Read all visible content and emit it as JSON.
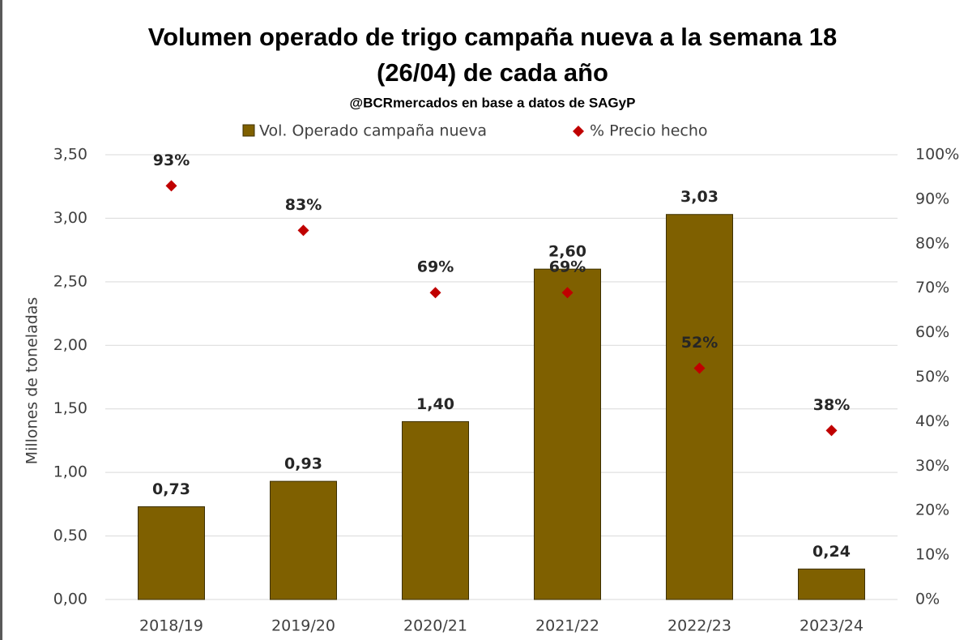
{
  "chart_data": {
    "type": "bar",
    "title": [
      "Volumen operado de trigo campaña nueva a la semana 18",
      "(26/04) de cada año"
    ],
    "subtitle": "@BCRmercados en base a datos de SAGyP",
    "y_label": "Millones de toneladas",
    "categories": [
      "2018/19",
      "2019/20",
      "2020/21",
      "2021/22",
      "2022/23",
      "2023/24"
    ],
    "series": [
      {
        "name": "Vol. Operado campaña nueva",
        "type": "bar",
        "color": "#7f6000",
        "values": [
          0.73,
          0.93,
          1.4,
          2.6,
          3.03,
          0.24
        ],
        "value_labels": [
          "0,73",
          "0,93",
          "1,40",
          "2,60",
          "3,03",
          "0,24"
        ]
      },
      {
        "name": "% Precio hecho",
        "type": "scatter",
        "axis": "y2",
        "color": "#c00000",
        "values": [
          93,
          83,
          69,
          69,
          52,
          38
        ],
        "value_labels": [
          "93%",
          "83%",
          "69%",
          "69%",
          "52%",
          "38%"
        ]
      }
    ],
    "ylim": [
      0,
      3.5
    ],
    "yticks": [
      {
        "value": 0,
        "label": "0,00"
      },
      {
        "value": 0.5,
        "label": "0,50"
      },
      {
        "value": 1,
        "label": "1,00"
      },
      {
        "value": 1.5,
        "label": "1,50"
      },
      {
        "value": 2,
        "label": "2,00"
      },
      {
        "value": 2.5,
        "label": "2,50"
      },
      {
        "value": 3,
        "label": "3,00"
      },
      {
        "value": 3.5,
        "label": "3,50"
      }
    ],
    "y2lim": [
      0,
      100
    ],
    "y2ticks": [
      {
        "value": 0,
        "label": "0%"
      },
      {
        "value": 10,
        "label": "10%"
      },
      {
        "value": 20,
        "label": "20%"
      },
      {
        "value": 30,
        "label": "30%"
      },
      {
        "value": 40,
        "label": "40%"
      },
      {
        "value": 50,
        "label": "50%"
      },
      {
        "value": 60,
        "label": "60%"
      },
      {
        "value": 70,
        "label": "70%"
      },
      {
        "value": 80,
        "label": "80%"
      },
      {
        "value": 90,
        "label": "90%"
      },
      {
        "value": 100,
        "label": "100%"
      }
    ],
    "grid": true,
    "legend": "top"
  }
}
